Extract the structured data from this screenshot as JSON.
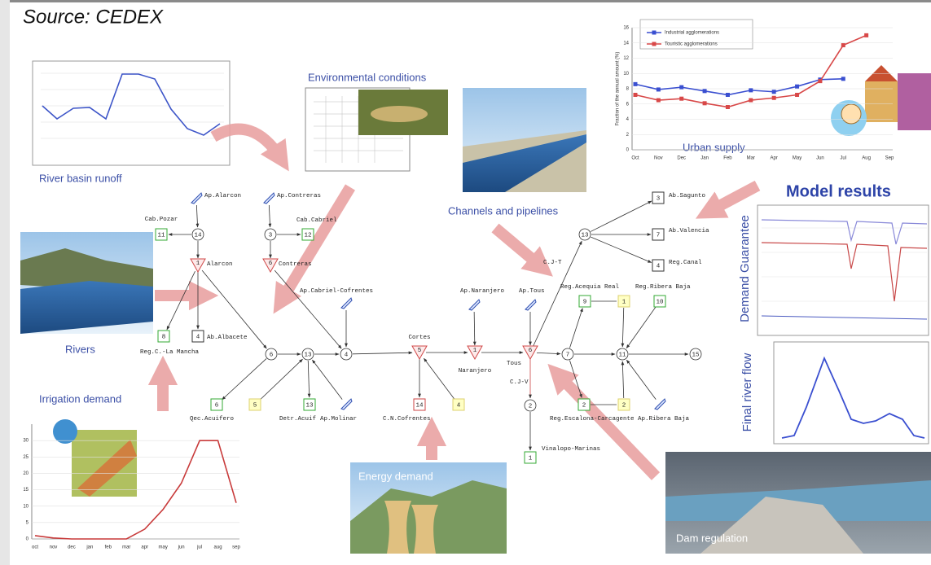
{
  "source": "Source: CEDEX",
  "panels": {
    "runoff": "River basin runoff",
    "environmental": "Environmental conditions",
    "channels": "Channels and pipelines",
    "urban": "Urban supply",
    "model_results": "Model results",
    "demand_guarantee": "Demand Guarantee",
    "final_flow": "Final river flow",
    "rivers": "Rivers",
    "irrigation": "Irrigation demand",
    "energy": "Energy demand",
    "dam": "Dam regulation"
  },
  "network": {
    "nodes": [
      {
        "number": "14"
      },
      {
        "number": "3"
      },
      {
        "label": "Ap.Alarcon"
      },
      {
        "label": "Ap.Contreras"
      },
      {
        "label": "Cab.Pozar",
        "number": "11"
      },
      {
        "label": "Cab.Cabriel",
        "number": "12"
      },
      {
        "label": "Alarcon",
        "number": "1"
      },
      {
        "label": "Contreras",
        "number": "6"
      },
      {
        "label": "Reg.C.-La Mancha",
        "number": "8"
      },
      {
        "label": "Ab.Albacete",
        "number": "4"
      },
      {
        "number": "6"
      },
      {
        "number": "13"
      },
      {
        "number": "4"
      },
      {
        "label": "Ap.Cabriel-Cofrentes"
      },
      {
        "label": "Cortes",
        "number": "5"
      },
      {
        "label": "Ap.Naranjero"
      },
      {
        "label": "Naranjero",
        "number": "1"
      },
      {
        "label": "Ap.Tous"
      },
      {
        "label": "Tous",
        "number": "6"
      },
      {
        "label": "C.J-T"
      },
      {
        "number": "13"
      },
      {
        "label": "Ab.Sagunto",
        "number": "3"
      },
      {
        "label": "Ab.Valencia",
        "number": "7"
      },
      {
        "label": "Reg.Canal",
        "number": "4"
      },
      {
        "label": "Reg.Acequia Real",
        "number": "9"
      },
      {
        "number": "1"
      },
      {
        "label": "Reg.Ribera Baja",
        "number": "10"
      },
      {
        "number": "7"
      },
      {
        "number": "11"
      },
      {
        "number": "15"
      },
      {
        "label": "C.J-V"
      },
      {
        "number": "2"
      },
      {
        "label": "Vinalopo-Marinas",
        "number": "1"
      },
      {
        "label": "Reg.Escalona-Carcagente",
        "number": "2"
      },
      {
        "number": "2"
      },
      {
        "label": "Ap.Ribera Baja"
      },
      {
        "label": "Qec.Acuifero",
        "number": "6"
      },
      {
        "number": "5"
      },
      {
        "label": "Detr.Acuif",
        "number": "13"
      },
      {
        "label": "Ap.Molinar"
      },
      {
        "label": "C.N.Cofrentes",
        "number": "14"
      },
      {
        "number": "4"
      }
    ]
  },
  "urban_chart": {
    "type": "line",
    "ylabel": "Fraction of the annual amount (%)",
    "categories": [
      "Oct",
      "Nov",
      "Dec",
      "Jan",
      "Feb",
      "Mar",
      "Apr",
      "May",
      "Jun",
      "Jul",
      "Aug",
      "Sep"
    ],
    "series": [
      {
        "name": "Industrial agglomerations",
        "color": "#3a4fd0",
        "values": [
          8.6,
          7.9,
          8.2,
          7.7,
          7.2,
          7.8,
          7.6,
          8.3,
          9.2,
          9.3,
          null,
          null
        ]
      },
      {
        "name": "Touristic agglomerations",
        "color": "#d84848",
        "values": [
          7.2,
          6.5,
          6.7,
          6.1,
          5.6,
          6.5,
          6.8,
          7.2,
          9.0,
          13.7,
          15.0,
          null
        ]
      }
    ],
    "ylim": [
      0,
      16
    ],
    "yticks": [
      0,
      2,
      4,
      6,
      8,
      10,
      12,
      14,
      16
    ]
  },
  "irrigation_chart": {
    "type": "line",
    "categories": [
      "oct",
      "nov",
      "dec",
      "jan",
      "feb",
      "mar",
      "apr",
      "may",
      "jun",
      "jul",
      "aug",
      "sep"
    ],
    "series": [
      {
        "color": "#c83a3a",
        "values": [
          1,
          0.3,
          0,
          0,
          0,
          0,
          3,
          9,
          17,
          30,
          30,
          11
        ]
      }
    ],
    "ylim": [
      0,
      35
    ],
    "yticks": [
      0,
      5,
      10,
      15,
      20,
      25,
      30
    ]
  }
}
